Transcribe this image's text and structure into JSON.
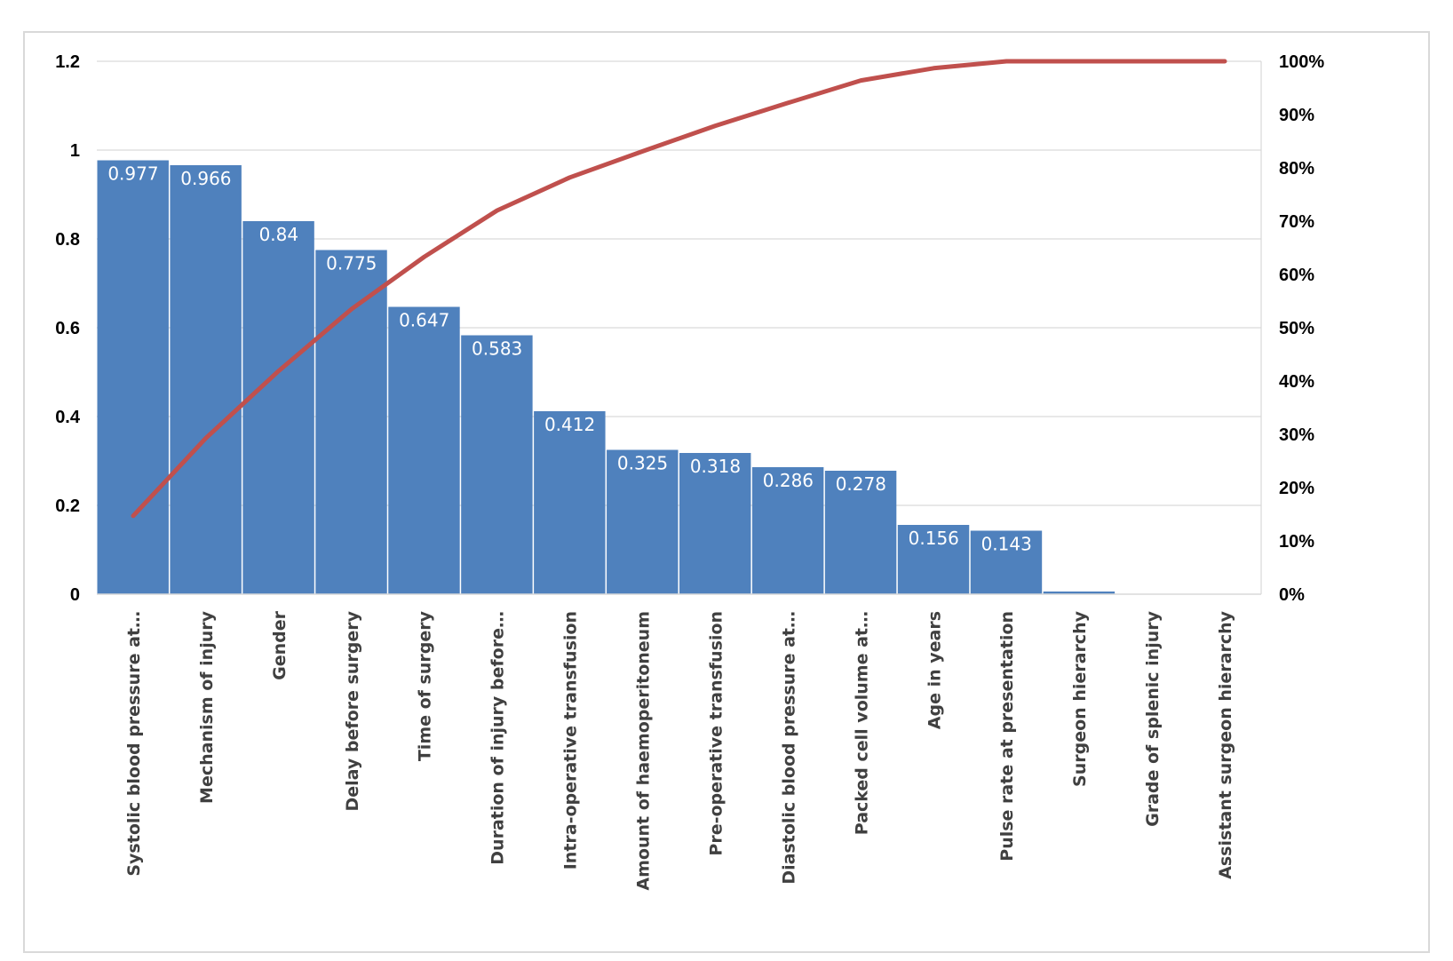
{
  "chart_data": {
    "type": "bar",
    "title": "",
    "xlabel": "",
    "ylabel": "",
    "categories": [
      "Systolic blood pressure at…",
      "Mechanism of injury",
      "Gender",
      "Delay before surgery",
      "Time of surgery",
      "Duration of injury before…",
      "Intra-operative transfusion",
      "Amount of haemoperitoneum",
      "Pre-operative transfusion",
      "Diastolic blood pressure at…",
      "Packed cell volume at…",
      "Age in years",
      "Pulse rate at presentation",
      "Surgeon hierarchy",
      "Grade of splenic injury",
      "Assistant surgeon hierarchy"
    ],
    "series": [
      {
        "type": "bar",
        "axis": "left",
        "color": "#4f81bd",
        "values": [
          0.977,
          0.966,
          0.84,
          0.775,
          0.647,
          0.583,
          0.412,
          0.325,
          0.318,
          0.286,
          0.278,
          0.156,
          0.143,
          0.006,
          0.0,
          0.0
        ],
        "data_labels": [
          "0.977",
          "0.966",
          "0.84",
          "0.775",
          "0.647",
          "0.583",
          "0.412",
          "0.325",
          "0.318",
          "0.286",
          "0.278",
          "0.156",
          "0.143",
          "",
          "",
          ""
        ]
      },
      {
        "type": "line",
        "axis": "right",
        "color": "#c0504d",
        "unit": "%",
        "values": [
          14.7,
          29.3,
          41.9,
          53.5,
          63.3,
          72.0,
          78.2,
          83.1,
          87.9,
          92.2,
          96.4,
          98.7,
          100.0,
          100.0,
          100.0,
          100.0
        ]
      }
    ],
    "y_left": {
      "range": [
        0,
        1.2
      ],
      "ticks": [
        0,
        0.2,
        0.4,
        0.6,
        0.8,
        1,
        1.2
      ],
      "tick_labels": [
        "0",
        "0.2",
        "0.4",
        "0.6",
        "0.8",
        "1",
        "1.2"
      ]
    },
    "y_right": {
      "range": [
        0,
        100
      ],
      "ticks": [
        0,
        10,
        20,
        30,
        40,
        50,
        60,
        70,
        80,
        90,
        100
      ],
      "tick_labels": [
        "0%",
        "10%",
        "20%",
        "30%",
        "40%",
        "50%",
        "60%",
        "70%",
        "80%",
        "90%",
        "100%"
      ]
    },
    "grid": true,
    "legend": "none"
  }
}
